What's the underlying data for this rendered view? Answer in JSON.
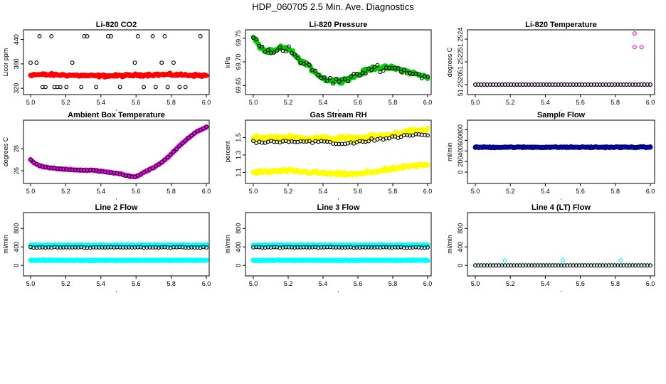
{
  "figure_title": "HDP_060705  2.5 Min. Ave. Diagnostics",
  "colors": {
    "black": "#000000",
    "red": "#ff0000",
    "green": "#00cc00",
    "magenta": "#ff00ff",
    "yellow": "#ffff00",
    "blue": "#0000ff",
    "cyan": "#00ffff"
  },
  "chart_data": [
    {
      "id": "co2",
      "type": "scatter",
      "title": "Li-820 CO2",
      "ylabel": "Licor ppm",
      "xlim": [
        5.0,
        6.0
      ],
      "ylim": [
        315,
        455
      ],
      "xticks": [
        5.0,
        5.2,
        5.4,
        5.6,
        5.8,
        6.0
      ],
      "xtick_labels": [
        "5.0",
        "5.2",
        "5.4",
        "5.6",
        "5.8",
        "6.0"
      ],
      "yticks": [
        320,
        380,
        440
      ],
      "ytick_labels": [
        "320",
        "380",
        "440"
      ],
      "series": [
        {
          "name": "black",
          "color": "#000000",
          "marker": "open",
          "gen": "co2_black"
        },
        {
          "name": "red",
          "color": "#ff0000",
          "marker": "filled",
          "gen": "band",
          "base": 352,
          "amp": 1.5,
          "noise": 2.5
        }
      ]
    },
    {
      "id": "pressure",
      "type": "scatter",
      "title": "Li-820 Pressure",
      "ylabel": "kPa",
      "xlim": [
        5.0,
        6.0
      ],
      "ylim": [
        69.64,
        69.76
      ],
      "xticks": [
        5.0,
        5.2,
        5.4,
        5.6,
        5.8,
        6.0
      ],
      "xtick_labels": [
        "5.0",
        "5.2",
        "5.4",
        "5.6",
        "5.8",
        "6.0"
      ],
      "yticks": [
        69.65,
        69.7,
        69.75
      ],
      "ytick_labels": [
        "69.65",
        "69.70",
        "69.75"
      ],
      "series": [
        {
          "name": "green",
          "color": "#00cc00",
          "marker": "filled",
          "gen": "curve",
          "knots": [
            [
              5.0,
              69.752
            ],
            [
              5.03,
              69.735
            ],
            [
              5.07,
              69.722
            ],
            [
              5.12,
              69.722
            ],
            [
              5.16,
              69.73
            ],
            [
              5.2,
              69.728
            ],
            [
              5.22,
              69.722
            ],
            [
              5.26,
              69.705
            ],
            [
              5.3,
              69.695
            ],
            [
              5.35,
              69.68
            ],
            [
              5.4,
              69.665
            ],
            [
              5.45,
              69.66
            ],
            [
              5.5,
              69.66
            ],
            [
              5.55,
              69.665
            ],
            [
              5.6,
              69.672
            ],
            [
              5.65,
              69.682
            ],
            [
              5.7,
              69.688
            ],
            [
              5.8,
              69.687
            ],
            [
              5.85,
              69.683
            ],
            [
              5.9,
              69.678
            ],
            [
              5.95,
              69.672
            ],
            [
              6.0,
              69.668
            ]
          ],
          "noise": 0.0035
        },
        {
          "name": "black",
          "color": "#000000",
          "marker": "open",
          "gen": "curve",
          "knots": [
            [
              5.0,
              69.752
            ],
            [
              5.03,
              69.735
            ],
            [
              5.07,
              69.722
            ],
            [
              5.12,
              69.722
            ],
            [
              5.16,
              69.73
            ],
            [
              5.2,
              69.728
            ],
            [
              5.22,
              69.722
            ],
            [
              5.26,
              69.705
            ],
            [
              5.3,
              69.695
            ],
            [
              5.35,
              69.68
            ],
            [
              5.4,
              69.665
            ],
            [
              5.45,
              69.66
            ],
            [
              5.5,
              69.66
            ],
            [
              5.55,
              69.665
            ],
            [
              5.6,
              69.672
            ],
            [
              5.65,
              69.682
            ],
            [
              5.7,
              69.688
            ],
            [
              5.8,
              69.687
            ],
            [
              5.85,
              69.683
            ],
            [
              5.9,
              69.678
            ],
            [
              5.95,
              69.672
            ],
            [
              6.0,
              69.668
            ]
          ],
          "noise": 0.006,
          "n": 60
        }
      ]
    },
    {
      "id": "temp",
      "type": "scatter",
      "title": "Li-820 Temperature",
      "ylabel": "degrees C",
      "xlim": [
        5.0,
        6.0
      ],
      "ylim": [
        51.25195,
        51.25245
      ],
      "xticks": [
        5.0,
        5.2,
        5.4,
        5.6,
        5.8,
        6.0
      ],
      "xtick_labels": [
        "5.0",
        "5.2",
        "5.4",
        "5.6",
        "5.8",
        "6.0"
      ],
      "yticks": [
        51.252,
        51.2522,
        51.2524
      ],
      "ytick_labels": [
        "51.2520",
        "51.2522",
        "51.2524"
      ],
      "series": [
        {
          "name": "magenta",
          "color": "#ff00ff",
          "marker": "open",
          "gen": "temp_mag"
        },
        {
          "name": "black",
          "color": "#000000",
          "marker": "open",
          "gen": "flat",
          "base": 51.252,
          "n": 60
        }
      ]
    },
    {
      "id": "ambient",
      "type": "scatter",
      "title": "Ambient Box Temperature",
      "ylabel": "degrees C",
      "xlim": [
        5.0,
        6.0
      ],
      "ylim": [
        25.3,
        30.2
      ],
      "xticks": [
        5.0,
        5.2,
        5.4,
        5.6,
        5.8,
        6.0
      ],
      "xtick_labels": [
        "5.0",
        "5.2",
        "5.4",
        "5.6",
        "5.8",
        "6.0"
      ],
      "yticks": [
        26,
        28
      ],
      "ytick_labels": [
        "26",
        "28"
      ],
      "series": [
        {
          "name": "magenta",
          "color": "#ff00ff",
          "marker": "filled",
          "gen": "curve",
          "knots": [
            [
              5.0,
              27.0
            ],
            [
              5.02,
              26.7
            ],
            [
              5.05,
              26.45
            ],
            [
              5.1,
              26.3
            ],
            [
              5.15,
              26.2
            ],
            [
              5.2,
              26.12
            ],
            [
              5.3,
              26.05
            ],
            [
              5.35,
              26.05
            ],
            [
              5.4,
              25.95
            ],
            [
              5.45,
              25.85
            ],
            [
              5.5,
              25.75
            ],
            [
              5.55,
              25.55
            ],
            [
              5.6,
              25.45
            ],
            [
              5.65,
              25.9
            ],
            [
              5.7,
              26.3
            ],
            [
              5.75,
              26.8
            ],
            [
              5.8,
              27.5
            ],
            [
              5.85,
              28.3
            ],
            [
              5.9,
              29.0
            ],
            [
              5.95,
              29.6
            ],
            [
              6.0,
              29.95
            ]
          ],
          "noise": 0.04
        },
        {
          "name": "black",
          "color": "#000000",
          "marker": "open",
          "gen": "curve",
          "knots": [
            [
              5.0,
              27.0
            ],
            [
              5.02,
              26.7
            ],
            [
              5.05,
              26.45
            ],
            [
              5.1,
              26.3
            ],
            [
              5.15,
              26.2
            ],
            [
              5.2,
              26.12
            ],
            [
              5.3,
              26.05
            ],
            [
              5.35,
              26.05
            ],
            [
              5.4,
              25.95
            ],
            [
              5.45,
              25.85
            ],
            [
              5.5,
              25.75
            ],
            [
              5.55,
              25.55
            ],
            [
              5.6,
              25.45
            ],
            [
              5.65,
              25.9
            ],
            [
              5.7,
              26.3
            ],
            [
              5.75,
              26.8
            ],
            [
              5.8,
              27.5
            ],
            [
              5.85,
              28.3
            ],
            [
              5.9,
              29.0
            ],
            [
              5.95,
              29.6
            ],
            [
              6.0,
              29.95
            ]
          ],
          "noise": 0.03,
          "n": 60
        }
      ]
    },
    {
      "id": "rh",
      "type": "scatter",
      "title": "Gas Stream RH",
      "ylabel": "percent",
      "xlim": [
        5.0,
        6.0
      ],
      "ylim": [
        1.03,
        1.65
      ],
      "xticks": [
        5.0,
        5.2,
        5.4,
        5.6,
        5.8,
        6.0
      ],
      "xtick_labels": [
        "5.0",
        "5.2",
        "5.4",
        "5.6",
        "5.8",
        "6.0"
      ],
      "yticks": [
        1.1,
        1.3,
        1.5
      ],
      "ytick_labels": [
        "1.1",
        "1.3",
        "1.5"
      ],
      "series": [
        {
          "name": "yellow-upper",
          "color": "#ffff00",
          "marker": "filled",
          "gen": "curve",
          "knots": [
            [
              5.0,
              1.5
            ],
            [
              5.2,
              1.5
            ],
            [
              5.4,
              1.49
            ],
            [
              5.6,
              1.49
            ],
            [
              5.7,
              1.51
            ],
            [
              5.8,
              1.54
            ],
            [
              5.9,
              1.57
            ],
            [
              6.0,
              1.59
            ]
          ],
          "noise": 0.022
        },
        {
          "name": "yellow-lower",
          "color": "#ffff00",
          "marker": "filled",
          "gen": "curve",
          "knots": [
            [
              5.0,
              1.1
            ],
            [
              5.2,
              1.12
            ],
            [
              5.4,
              1.09
            ],
            [
              5.5,
              1.08
            ],
            [
              5.6,
              1.08
            ],
            [
              5.7,
              1.11
            ],
            [
              5.8,
              1.14
            ],
            [
              5.9,
              1.17
            ],
            [
              6.0,
              1.19
            ]
          ],
          "noise": 0.015
        },
        {
          "name": "black",
          "color": "#000000",
          "marker": "open",
          "gen": "curve",
          "knots": [
            [
              5.0,
              1.45
            ],
            [
              5.2,
              1.46
            ],
            [
              5.4,
              1.45
            ],
            [
              5.5,
              1.42
            ],
            [
              5.6,
              1.45
            ],
            [
              5.7,
              1.48
            ],
            [
              5.8,
              1.5
            ],
            [
              5.9,
              1.52
            ],
            [
              6.0,
              1.54
            ]
          ],
          "noise": 0.015,
          "n": 60
        }
      ]
    },
    {
      "id": "sampleflow",
      "type": "scatter",
      "title": "Sample Flow",
      "ylabel": "ml/min",
      "xlim": [
        5.0,
        6.0
      ],
      "ylim": [
        -120,
        900
      ],
      "xticks": [
        5.0,
        5.2,
        5.4,
        5.6,
        5.8,
        6.0
      ],
      "xtick_labels": [
        "5.0",
        "5.2",
        "5.4",
        "5.6",
        "5.8",
        "6.0"
      ],
      "yticks": [
        0,
        200,
        400,
        600,
        800
      ],
      "ytick_labels": [
        "0",
        "200",
        "400",
        "600",
        "800"
      ],
      "series": [
        {
          "name": "blue",
          "color": "#0000ff",
          "marker": "filled",
          "gen": "band",
          "base": 470,
          "amp": 0,
          "noise": 8
        },
        {
          "name": "black",
          "color": "#000000",
          "marker": "open",
          "gen": "band",
          "base": 470,
          "amp": 0,
          "noise": 10,
          "n": 60
        }
      ]
    },
    {
      "id": "line2",
      "type": "scatter",
      "title": "Line 2 Flow",
      "ylabel": "ml/min",
      "xlim": [
        5.0,
        6.0
      ],
      "ylim": [
        -120,
        1050
      ],
      "xticks": [
        5.0,
        5.2,
        5.4,
        5.6,
        5.8,
        6.0
      ],
      "xtick_labels": [
        "5.0",
        "5.2",
        "5.4",
        "5.6",
        "5.8",
        "6.0"
      ],
      "yticks": [
        0,
        400,
        800
      ],
      "ytick_labels": [
        "0",
        "400",
        "800"
      ],
      "series": [
        {
          "name": "cyan-upper",
          "color": "#00ffff",
          "marker": "filled",
          "gen": "band",
          "base": 440,
          "amp": 0,
          "noise": 6
        },
        {
          "name": "cyan-lower",
          "color": "#00ffff",
          "marker": "filled",
          "gen": "band",
          "base": 110,
          "amp": 0,
          "noise": 6
        },
        {
          "name": "black",
          "color": "#000000",
          "marker": "open",
          "gen": "band",
          "base": 390,
          "amp": 0,
          "noise": 6,
          "n": 60
        }
      ]
    },
    {
      "id": "line3",
      "type": "scatter",
      "title": "Line 3 Flow",
      "ylabel": "ml/min",
      "xlim": [
        5.0,
        6.0
      ],
      "ylim": [
        -120,
        1050
      ],
      "xticks": [
        5.0,
        5.2,
        5.4,
        5.6,
        5.8,
        6.0
      ],
      "xtick_labels": [
        "5.0",
        "5.2",
        "5.4",
        "5.6",
        "5.8",
        "6.0"
      ],
      "yticks": [
        0,
        400,
        800
      ],
      "ytick_labels": [
        "0",
        "400",
        "800"
      ],
      "series": [
        {
          "name": "cyan-upper",
          "color": "#00ffff",
          "marker": "filled",
          "gen": "band",
          "base": 440,
          "amp": 0,
          "noise": 6
        },
        {
          "name": "cyan-lower",
          "color": "#00ffff",
          "marker": "filled",
          "gen": "band",
          "base": 110,
          "amp": 0,
          "noise": 6
        },
        {
          "name": "black",
          "color": "#000000",
          "marker": "open",
          "gen": "band",
          "base": 390,
          "amp": 0,
          "noise": 6,
          "n": 60
        }
      ]
    },
    {
      "id": "line4",
      "type": "scatter",
      "title": "Line 4 (LT) Flow",
      "ylabel": "ml/min",
      "xlim": [
        5.0,
        6.0
      ],
      "ylim": [
        -120,
        1050
      ],
      "xticks": [
        5.0,
        5.2,
        5.4,
        5.6,
        5.8,
        6.0
      ],
      "xtick_labels": [
        "5.0",
        "5.2",
        "5.4",
        "5.6",
        "5.8",
        "6.0"
      ],
      "yticks": [
        0,
        400,
        800
      ],
      "ytick_labels": [
        "0",
        "400",
        "800"
      ],
      "series": [
        {
          "name": "cyan",
          "color": "#00ffff",
          "marker": "open",
          "gen": "band",
          "base": 0,
          "amp": 0,
          "noise": 0,
          "n": 60,
          "spikes": [
            [
              5.17,
              110
            ],
            [
              5.5,
              110
            ],
            [
              5.83,
              110
            ]
          ]
        },
        {
          "name": "black",
          "color": "#000000",
          "marker": "open",
          "gen": "band",
          "base": 0,
          "amp": 0,
          "noise": 0,
          "n": 60
        }
      ]
    }
  ]
}
